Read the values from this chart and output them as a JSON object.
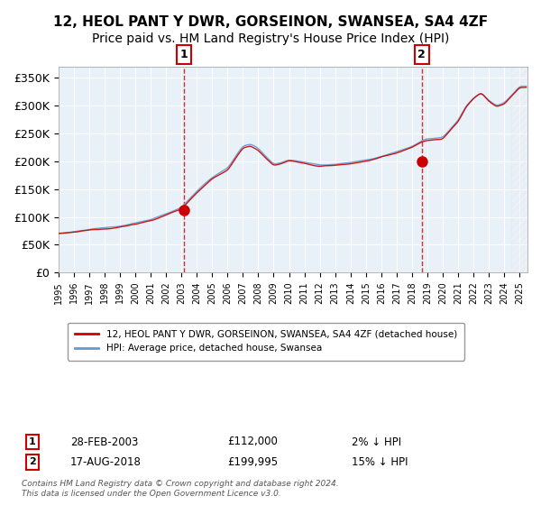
{
  "title": "12, HEOL PANT Y DWR, GORSEINON, SWANSEA, SA4 4ZF",
  "subtitle": "Price paid vs. HM Land Registry's House Price Index (HPI)",
  "ylabel": "",
  "xlabel": "",
  "ylim": [
    0,
    370000
  ],
  "yticks": [
    0,
    50000,
    100000,
    150000,
    200000,
    250000,
    300000,
    350000
  ],
  "ytick_labels": [
    "£0",
    "£50K",
    "£100K",
    "£150K",
    "£200K",
    "£250K",
    "£300K",
    "£350K"
  ],
  "sale1": {
    "date_label": "28-FEB-2003",
    "price": 112000,
    "label": "2% ↓ HPI",
    "x_year": 2003.17
  },
  "sale2": {
    "date_label": "17-AUG-2018",
    "price": 199995,
    "label": "15% ↓ HPI",
    "x_year": 2018.63
  },
  "legend_line1": "12, HEOL PANT Y DWR, GORSEINON, SWANSEA, SA4 4ZF (detached house)",
  "legend_line2": "HPI: Average price, detached house, Swansea",
  "footnote": "Contains HM Land Registry data © Crown copyright and database right 2024.\nThis data is licensed under the Open Government Licence v3.0.",
  "hpi_color": "#6699cc",
  "price_color": "#cc0000",
  "bg_color": "#e8f0f8",
  "hatch_color": "#c0c8d8",
  "grid_color": "#ffffff",
  "xmin": 1995.0,
  "xmax": 2025.5,
  "title_fontsize": 11,
  "subtitle_fontsize": 10
}
